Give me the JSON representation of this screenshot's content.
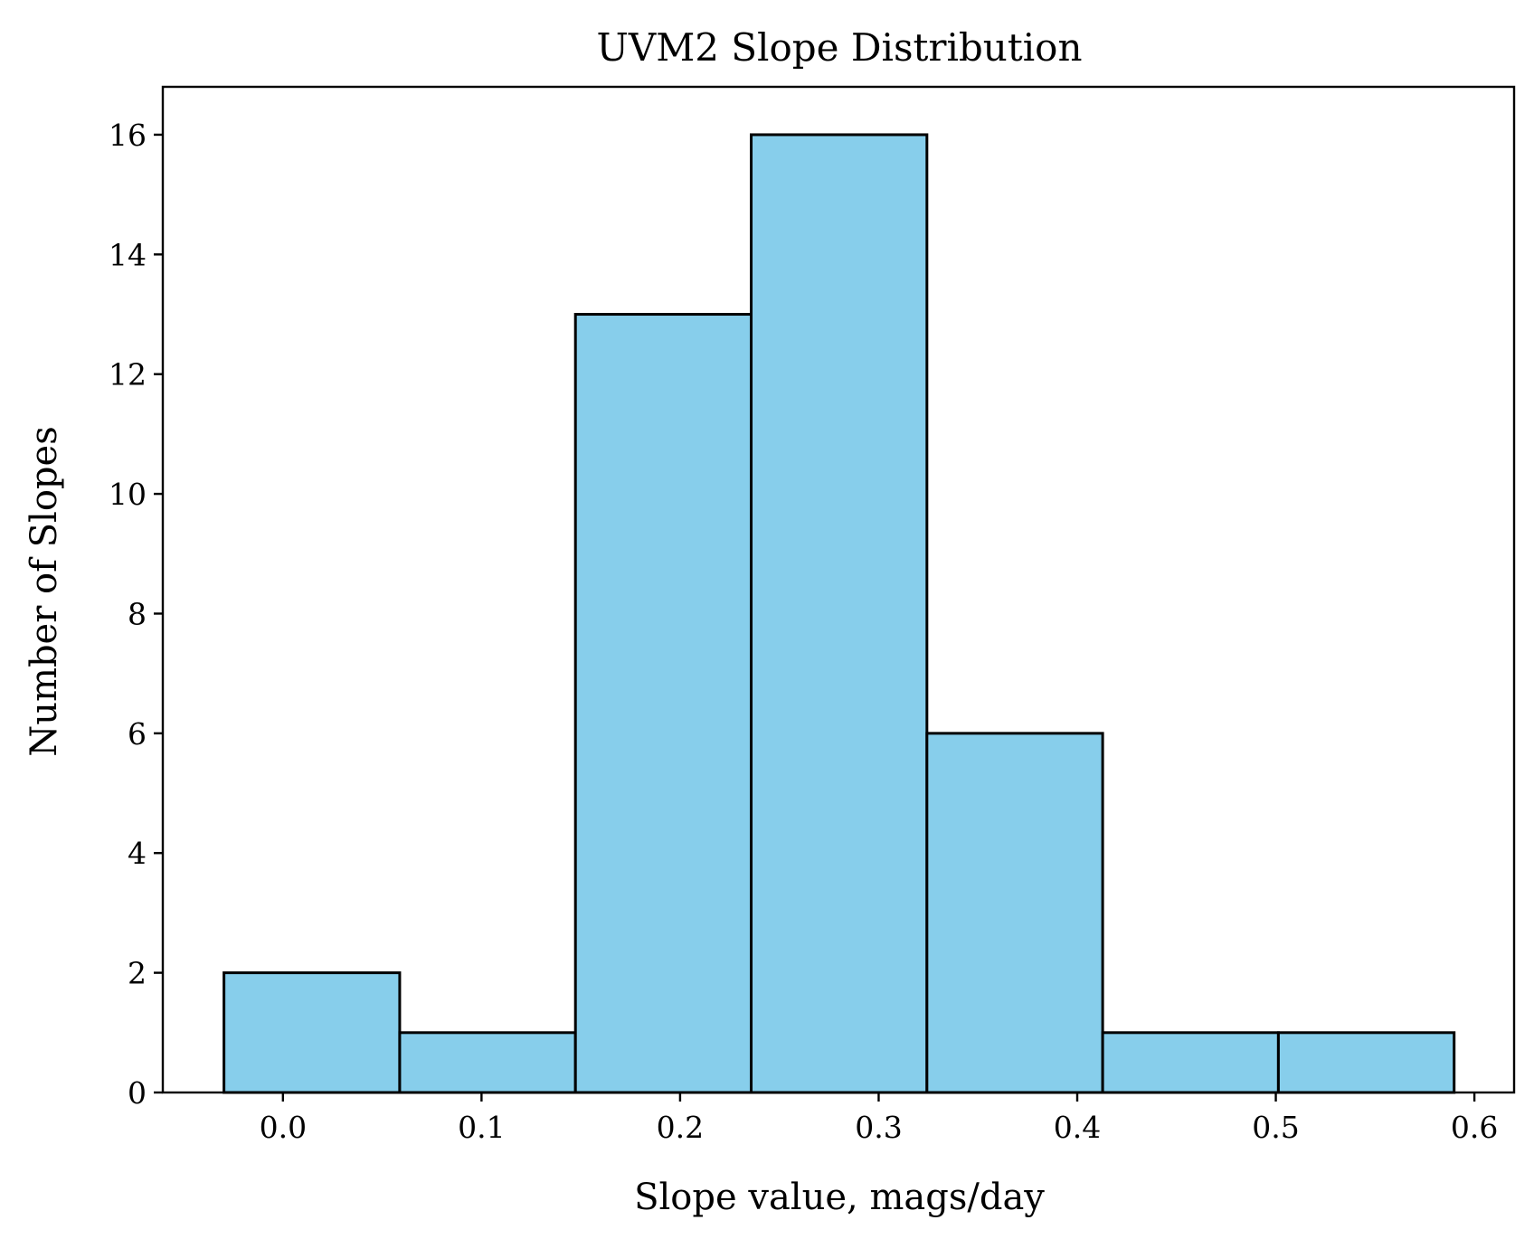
{
  "chart_data": {
    "type": "bar",
    "title": "UVM2 Slope Distribution",
    "xlabel": "Slope value, mags/day",
    "ylabel": "Number of Slopes",
    "bin_edges": [
      -0.0297,
      0.0588,
      0.1473,
      0.2358,
      0.3243,
      0.4128,
      0.5013,
      0.5898
    ],
    "values": [
      2,
      1,
      13,
      16,
      6,
      1,
      1
    ],
    "xlim": [
      -0.0605,
      0.62
    ],
    "ylim": [
      0,
      16.8
    ],
    "xticks": [
      0.0,
      0.1,
      0.2,
      0.3,
      0.4,
      0.5,
      0.6
    ],
    "xtick_labels": [
      "0.0",
      "0.1",
      "0.2",
      "0.3",
      "0.4",
      "0.5",
      "0.6"
    ],
    "yticks": [
      0,
      2,
      4,
      6,
      8,
      10,
      12,
      14,
      16
    ],
    "ytick_labels": [
      "0",
      "2",
      "4",
      "6",
      "8",
      "10",
      "12",
      "14",
      "16"
    ],
    "grid": false,
    "bar_color": "#87ceeb",
    "edge_color": "#000000"
  }
}
